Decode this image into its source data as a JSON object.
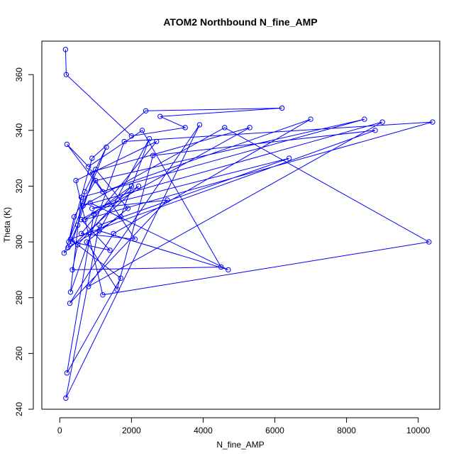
{
  "chart_data": {
    "type": "line",
    "title": "ATOM2 Northbound N_fine_AMP",
    "xlabel": "N_fine_AMP",
    "ylabel": "Theta (K)",
    "xlim": [
      -500,
      10600
    ],
    "ylim": [
      240,
      372
    ],
    "xticks": [
      0,
      2000,
      4000,
      6000,
      8000,
      10000
    ],
    "yticks": [
      240,
      260,
      280,
      300,
      320,
      340,
      360
    ],
    "grid": false,
    "legend": "none",
    "color": "#0000ff",
    "marker": "open-circle",
    "series": [
      {
        "x": [
          160,
          180,
          2000,
          3500,
          2800,
          6200,
          2400,
          900,
          250,
          400,
          1000,
          8500,
          600,
          300,
          1800,
          10400,
          700,
          2000,
          500,
          350,
          4500,
          2300,
          800,
          200,
          1200,
          7000,
          1500,
          280,
          3000,
          900,
          6400,
          1100,
          170,
          3900,
          800,
          9000,
          650,
          4600,
          10300,
          1200,
          450,
          2700,
          600,
          2100,
          850,
          5300,
          950,
          200,
          1700,
          300,
          8800,
          2600,
          1600,
          750,
          1900,
          1000,
          350,
          1400,
          600,
          2200,
          120,
          1300,
          700,
          500,
          230,
          1700,
          2500,
          1100,
          4700,
          850
        ],
        "y": [
          369,
          360,
          338,
          341,
          345,
          348,
          347,
          330,
          300,
          309,
          322,
          344,
          316,
          282,
          336,
          343,
          308,
          320,
          299,
          290,
          291,
          340,
          327,
          335,
          318,
          344,
          303,
          278,
          315,
          312,
          330,
          306,
          244,
          342,
          284,
          343,
          313,
          341,
          300,
          281,
          322,
          336,
          303,
          301,
          325,
          341,
          310,
          253,
          287,
          301,
          340,
          331,
          283,
          300,
          312,
          326,
          300,
          297,
          308,
          320,
          296,
          334,
          318,
          306,
          298,
          309,
          337,
          304,
          290,
          314
        ]
      }
    ]
  }
}
